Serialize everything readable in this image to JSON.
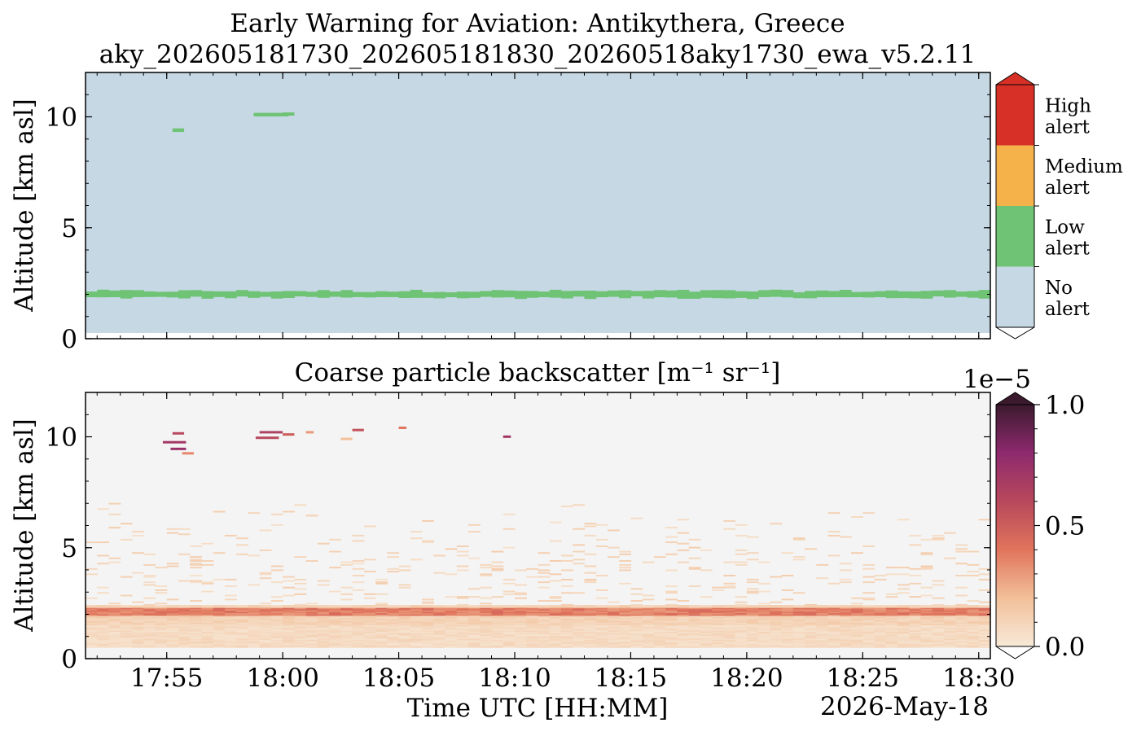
{
  "figure": {
    "title_line1": "Early Warning for Aviation: Antikythera, Greece",
    "title_line2": "aky_202605181730_202605181830_20260518aky1730_ewa_v5.2.11",
    "xlabel": "Time UTC [HH:MM]",
    "date_label": "2026-May-18"
  },
  "chart_data": [
    {
      "type": "heatmap",
      "panel": "alert",
      "title": "",
      "ylabel": "Altitude [km asl]",
      "xlim": [
        "17:51:30",
        "18:30:30"
      ],
      "ylim": [
        0,
        12
      ],
      "x_ticks": [
        "17:55",
        "18:00",
        "18:05",
        "18:10",
        "18:15",
        "18:20",
        "18:25",
        "18:30"
      ],
      "y_ticks": [
        "0",
        "5",
        "10"
      ],
      "colorbar": {
        "categories": [
          "No alert",
          "Low alert",
          "Medium alert",
          "High alert"
        ],
        "labels_line1": [
          "No",
          "Low",
          "Medium",
          "High"
        ],
        "labels_line2": [
          "alert",
          "alert",
          "alert",
          "alert"
        ],
        "colors": [
          "#c5d8e4",
          "#6fc374",
          "#f5b14a",
          "#d73027"
        ]
      },
      "features": [
        {
          "category": "Low alert",
          "description_alt_km": [
            1.8,
            2.2
          ],
          "time_range": [
            "17:51:30",
            "18:30:30"
          ]
        },
        {
          "category": "Low alert",
          "alt_km": 9.4,
          "time_range": [
            "17:55:15",
            "17:55:45"
          ]
        },
        {
          "category": "Low alert",
          "alt_km": 10.1,
          "time_range": [
            "17:58:45",
            "18:00:15"
          ]
        }
      ],
      "background_color": "#c5d8e4",
      "ground_alt_km": 0.25
    },
    {
      "type": "heatmap",
      "panel": "backscatter",
      "title": "Coarse particle backscatter [m⁻¹ sr⁻¹]",
      "ylabel": "Altitude [km asl]",
      "xlim": [
        "17:51:30",
        "18:30:30"
      ],
      "ylim": [
        0,
        12
      ],
      "x_ticks": [
        "17:55",
        "18:00",
        "18:05",
        "18:10",
        "18:15",
        "18:20",
        "18:25",
        "18:30"
      ],
      "y_ticks": [
        "0",
        "5",
        "10"
      ],
      "colorbar": {
        "scale_label": "1e−5",
        "ticks": [
          "0.0",
          "0.5",
          "1.0"
        ],
        "range": [
          0,
          1.0
        ],
        "colors": [
          "#f7e9d8",
          "#f2c09a",
          "#e0745c",
          "#b8485c",
          "#8e2a6e",
          "#3b1a2e"
        ]
      },
      "features": [
        {
          "layer": "aerosol",
          "alt_km": [
            0.5,
            2.3
          ],
          "value_range": [
            0.05,
            0.35
          ]
        },
        {
          "layer": "strong",
          "alt_km": [
            1.9,
            2.2
          ],
          "value_range": [
            0.35,
            0.5
          ]
        },
        {
          "layer": "cirrus",
          "alt_km": [
            9.2,
            10.4
          ],
          "value_range": [
            0.4,
            0.8
          ]
        }
      ],
      "background_color": "#f4f4f4"
    }
  ]
}
